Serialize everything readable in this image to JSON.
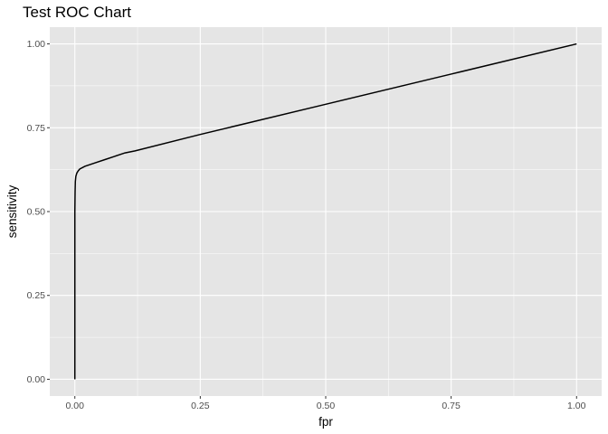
{
  "chart_data": {
    "type": "line",
    "title": "Test ROC Chart",
    "xlabel": "fpr",
    "ylabel": "sensitivity",
    "xlim": [
      0,
      1
    ],
    "ylim": [
      0,
      1
    ],
    "x_ticks": [
      "0.00",
      "0.25",
      "0.50",
      "0.75",
      "1.00"
    ],
    "y_ticks": [
      "0.00",
      "0.25",
      "0.50",
      "0.75",
      "1.00"
    ],
    "grid": true,
    "legend": "none",
    "colors": {
      "panel": "#e5e5e5",
      "grid": "#ffffff",
      "line": "#000000",
      "tick_text": "#4d4d4d"
    },
    "series": [
      {
        "x": [
          0.0,
          0.0,
          0.0005,
          0.001,
          0.002,
          0.004,
          0.007,
          0.01,
          0.02,
          0.04,
          0.06,
          0.08,
          0.1,
          0.12,
          0.25,
          0.5,
          0.75,
          1.0
        ],
        "y": [
          0.0,
          0.5,
          0.56,
          0.59,
          0.605,
          0.615,
          0.622,
          0.627,
          0.635,
          0.645,
          0.655,
          0.665,
          0.675,
          0.681,
          0.73,
          0.82,
          0.91,
          1.0
        ]
      }
    ]
  }
}
